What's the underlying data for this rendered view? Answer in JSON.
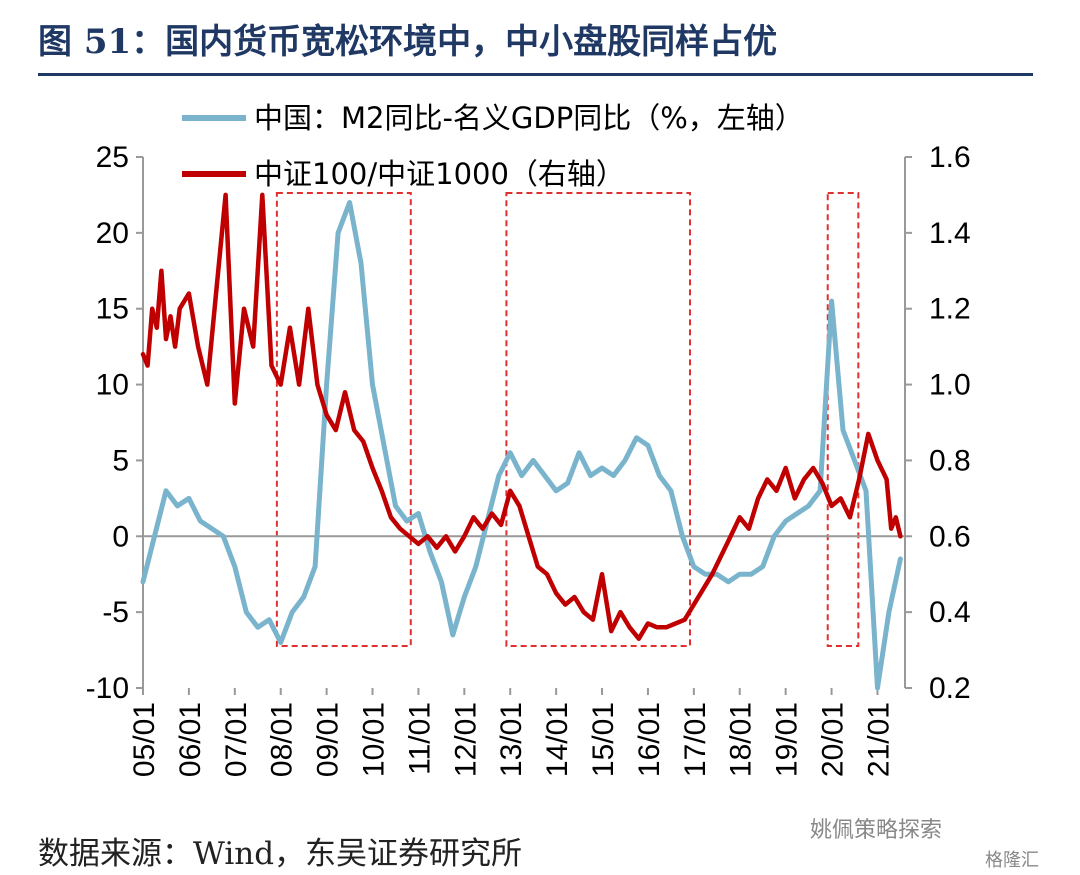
{
  "title": "图 51：国内货币宽松环境中，中小盘股同样占优",
  "source": "数据来源：Wind，东吴证券研究所",
  "watermark": {
    "primary": "姚佩策略探索",
    "secondary": "格隆汇"
  },
  "chart_data": {
    "type": "line",
    "legend": [
      "中国：M2同比-名义GDP同比（%，左轴）",
      "中证100/中证1000（右轴）"
    ],
    "left_axis": {
      "min": -10,
      "max": 25,
      "ticks": [
        -10,
        -5,
        0,
        5,
        10,
        15,
        20,
        25
      ]
    },
    "right_axis": {
      "min": 0.2,
      "max": 1.6,
      "ticks": [
        "0.2",
        "0.4",
        "0.6",
        "0.8",
        "1.0",
        "1.2",
        "1.4",
        "1.6"
      ]
    },
    "x_ticks": [
      "05/01",
      "06/01",
      "07/01",
      "08/01",
      "09/01",
      "10/01",
      "11/01",
      "12/01",
      "13/01",
      "14/01",
      "15/01",
      "16/01",
      "17/01",
      "18/01",
      "19/01",
      "20/01",
      "21/01"
    ],
    "x_range": [
      2005.0,
      2021.6
    ],
    "grid": false,
    "legend_placement": "top",
    "colors": {
      "m2_gdp": "#79b4cc",
      "ratio": "#c00000",
      "shade_box": "#e03030",
      "title": "#1f3864"
    },
    "highlight_periods": [
      {
        "start": "2007-12",
        "end": "2010-11"
      },
      {
        "start": "2012-12",
        "end": "2016-12"
      },
      {
        "start": "2019-12",
        "end": "2020-08"
      }
    ],
    "series": [
      {
        "name": "中国：M2同比-名义GDP同比（%，左轴）",
        "axis": "left",
        "points": [
          [
            2005.0,
            -3
          ],
          [
            2005.25,
            0
          ],
          [
            2005.5,
            3
          ],
          [
            2005.75,
            2
          ],
          [
            2006.0,
            2.5
          ],
          [
            2006.25,
            1
          ],
          [
            2006.5,
            0.5
          ],
          [
            2006.75,
            0
          ],
          [
            2007.0,
            -2
          ],
          [
            2007.25,
            -5
          ],
          [
            2007.5,
            -6
          ],
          [
            2007.75,
            -5.5
          ],
          [
            2008.0,
            -7
          ],
          [
            2008.25,
            -5
          ],
          [
            2008.5,
            -4
          ],
          [
            2008.75,
            -2
          ],
          [
            2009.0,
            10
          ],
          [
            2009.25,
            20
          ],
          [
            2009.5,
            22
          ],
          [
            2009.75,
            18
          ],
          [
            2010.0,
            10
          ],
          [
            2010.25,
            6
          ],
          [
            2010.5,
            2
          ],
          [
            2010.75,
            1
          ],
          [
            2011.0,
            1.5
          ],
          [
            2011.25,
            -1
          ],
          [
            2011.5,
            -3
          ],
          [
            2011.75,
            -6.5
          ],
          [
            2012.0,
            -4
          ],
          [
            2012.25,
            -2
          ],
          [
            2012.5,
            1
          ],
          [
            2012.75,
            4
          ],
          [
            2013.0,
            5.5
          ],
          [
            2013.25,
            4
          ],
          [
            2013.5,
            5
          ],
          [
            2013.75,
            4
          ],
          [
            2014.0,
            3
          ],
          [
            2014.25,
            3.5
          ],
          [
            2014.5,
            5.5
          ],
          [
            2014.75,
            4
          ],
          [
            2015.0,
            4.5
          ],
          [
            2015.25,
            4
          ],
          [
            2015.5,
            5
          ],
          [
            2015.75,
            6.5
          ],
          [
            2016.0,
            6
          ],
          [
            2016.25,
            4
          ],
          [
            2016.5,
            3
          ],
          [
            2016.75,
            0
          ],
          [
            2017.0,
            -2
          ],
          [
            2017.25,
            -2.5
          ],
          [
            2017.5,
            -2.5
          ],
          [
            2017.75,
            -3
          ],
          [
            2018.0,
            -2.5
          ],
          [
            2018.25,
            -2.5
          ],
          [
            2018.5,
            -2
          ],
          [
            2018.75,
            0
          ],
          [
            2019.0,
            1
          ],
          [
            2019.25,
            1.5
          ],
          [
            2019.5,
            2
          ],
          [
            2019.75,
            3
          ],
          [
            2020.0,
            15.5
          ],
          [
            2020.25,
            7
          ],
          [
            2020.5,
            5
          ],
          [
            2020.75,
            3
          ],
          [
            2021.0,
            -10
          ],
          [
            2021.25,
            -5
          ],
          [
            2021.5,
            -1.5
          ]
        ]
      },
      {
        "name": "中证100/中证1000（右轴）",
        "axis": "right",
        "points": [
          [
            2005.0,
            1.08
          ],
          [
            2005.1,
            1.05
          ],
          [
            2005.2,
            1.2
          ],
          [
            2005.3,
            1.15
          ],
          [
            2005.4,
            1.3
          ],
          [
            2005.5,
            1.12
          ],
          [
            2005.6,
            1.18
          ],
          [
            2005.7,
            1.1
          ],
          [
            2005.8,
            1.2
          ],
          [
            2006.0,
            1.24
          ],
          [
            2006.2,
            1.1
          ],
          [
            2006.4,
            1.0
          ],
          [
            2006.6,
            1.25
          ],
          [
            2006.8,
            1.5
          ],
          [
            2007.0,
            0.95
          ],
          [
            2007.2,
            1.2
          ],
          [
            2007.4,
            1.1
          ],
          [
            2007.6,
            1.5
          ],
          [
            2007.8,
            1.05
          ],
          [
            2008.0,
            1.0
          ],
          [
            2008.2,
            1.15
          ],
          [
            2008.4,
            1.0
          ],
          [
            2008.6,
            1.2
          ],
          [
            2008.8,
            1.0
          ],
          [
            2009.0,
            0.92
          ],
          [
            2009.2,
            0.88
          ],
          [
            2009.4,
            0.98
          ],
          [
            2009.6,
            0.88
          ],
          [
            2009.8,
            0.85
          ],
          [
            2010.0,
            0.78
          ],
          [
            2010.2,
            0.72
          ],
          [
            2010.4,
            0.65
          ],
          [
            2010.6,
            0.62
          ],
          [
            2010.8,
            0.6
          ],
          [
            2011.0,
            0.58
          ],
          [
            2011.2,
            0.6
          ],
          [
            2011.4,
            0.57
          ],
          [
            2011.6,
            0.6
          ],
          [
            2011.8,
            0.56
          ],
          [
            2012.0,
            0.6
          ],
          [
            2012.2,
            0.65
          ],
          [
            2012.4,
            0.62
          ],
          [
            2012.6,
            0.66
          ],
          [
            2012.8,
            0.63
          ],
          [
            2013.0,
            0.72
          ],
          [
            2013.2,
            0.68
          ],
          [
            2013.4,
            0.6
          ],
          [
            2013.6,
            0.52
          ],
          [
            2013.8,
            0.5
          ],
          [
            2014.0,
            0.45
          ],
          [
            2014.2,
            0.42
          ],
          [
            2014.4,
            0.44
          ],
          [
            2014.6,
            0.4
          ],
          [
            2014.8,
            0.38
          ],
          [
            2015.0,
            0.5
          ],
          [
            2015.2,
            0.35
          ],
          [
            2015.4,
            0.4
          ],
          [
            2015.6,
            0.36
          ],
          [
            2015.8,
            0.33
          ],
          [
            2016.0,
            0.37
          ],
          [
            2016.2,
            0.36
          ],
          [
            2016.4,
            0.36
          ],
          [
            2016.6,
            0.37
          ],
          [
            2016.8,
            0.38
          ],
          [
            2017.0,
            0.42
          ],
          [
            2017.2,
            0.46
          ],
          [
            2017.4,
            0.5
          ],
          [
            2017.6,
            0.55
          ],
          [
            2017.8,
            0.6
          ],
          [
            2018.0,
            0.65
          ],
          [
            2018.2,
            0.62
          ],
          [
            2018.4,
            0.7
          ],
          [
            2018.6,
            0.75
          ],
          [
            2018.8,
            0.72
          ],
          [
            2019.0,
            0.78
          ],
          [
            2019.2,
            0.7
          ],
          [
            2019.4,
            0.75
          ],
          [
            2019.6,
            0.78
          ],
          [
            2019.8,
            0.74
          ],
          [
            2020.0,
            0.68
          ],
          [
            2020.2,
            0.7
          ],
          [
            2020.4,
            0.65
          ],
          [
            2020.6,
            0.75
          ],
          [
            2020.8,
            0.87
          ],
          [
            2021.0,
            0.8
          ],
          [
            2021.2,
            0.75
          ],
          [
            2021.3,
            0.62
          ],
          [
            2021.4,
            0.65
          ],
          [
            2021.5,
            0.6
          ]
        ]
      }
    ]
  }
}
